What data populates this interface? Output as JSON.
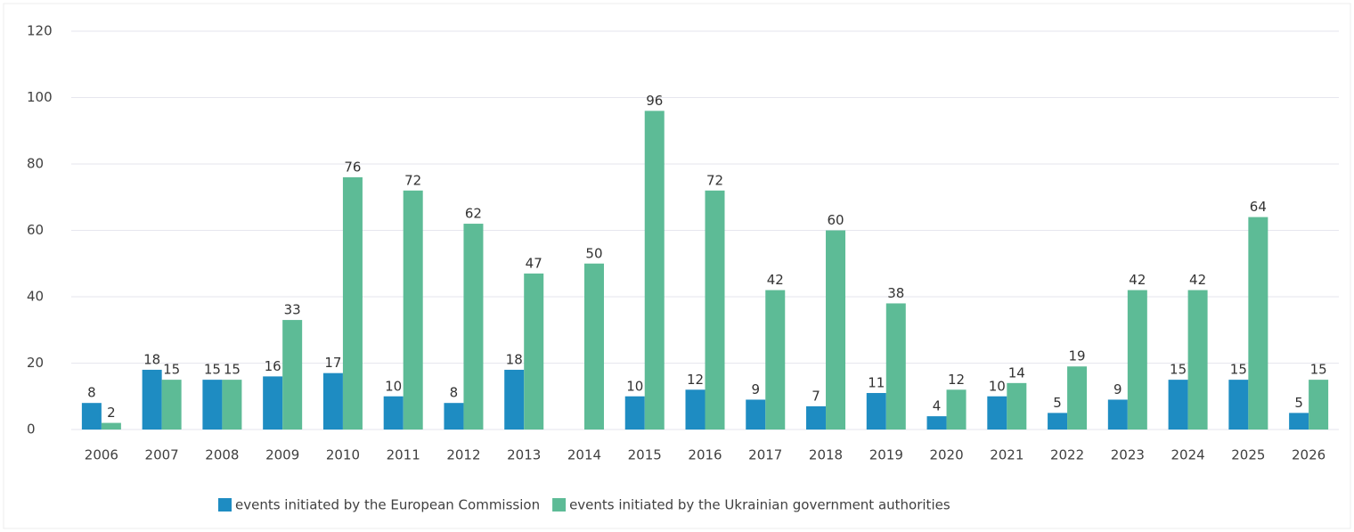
{
  "chart_data": {
    "type": "bar",
    "categories": [
      "2006",
      "2007",
      "2008",
      "2009",
      "2010",
      "2011",
      "2012",
      "2013",
      "2014",
      "2015",
      "2016",
      "2017",
      "2018",
      "2019",
      "2020",
      "2021",
      "2022",
      "2023",
      "2024",
      "2025",
      "2026"
    ],
    "series": [
      {
        "name": "events initiated by the European Commission",
        "color": "#1e8cc2",
        "values": [
          8,
          18,
          15,
          16,
          17,
          10,
          8,
          18,
          null,
          10,
          12,
          9,
          7,
          11,
          4,
          10,
          5,
          9,
          15,
          15,
          5
        ]
      },
      {
        "name": "events initiated by the Ukrainian government authorities",
        "color": "#5dbb96",
        "values": [
          2,
          15,
          15,
          33,
          76,
          72,
          62,
          47,
          50,
          96,
          72,
          42,
          60,
          38,
          12,
          14,
          19,
          42,
          42,
          64,
          15
        ]
      }
    ],
    "ylim": [
      0,
      120
    ],
    "yticks": [
      0,
      20,
      40,
      60,
      80,
      100,
      120
    ],
    "grid": true,
    "legend": "bottom"
  }
}
